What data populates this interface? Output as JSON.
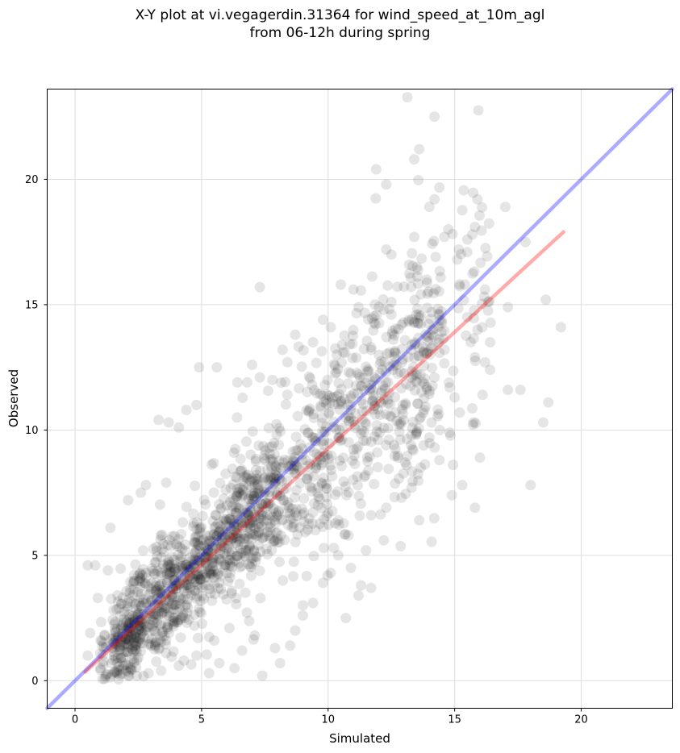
{
  "title_line1": "X-Y plot at vi.vegagerdin.31364 for wind_speed_at_10m_agl",
  "title_line2": "from 06-12h during spring",
  "chart_data": {
    "type": "scatter",
    "title": "X-Y plot at vi.vegagerdin.31364 for wind_speed_at_10m_agl\nfrom 06-12h during spring",
    "xlabel": "Simulated",
    "ylabel": "Observed",
    "xlim": [
      -1.1,
      23.6
    ],
    "ylim": [
      -1.1,
      23.6
    ],
    "xticks": [
      0,
      5,
      10,
      15,
      20
    ],
    "yticks": [
      0,
      5,
      10,
      15,
      20
    ],
    "grid": true,
    "point_color": "#000000",
    "point_alpha": 0.1,
    "reference_lines": [
      {
        "kind": "one-to-one",
        "color": "#0000ff",
        "x": [
          -1.1,
          23.6
        ],
        "y": [
          -1.1,
          23.6
        ]
      },
      {
        "kind": "regression",
        "color": "#ff0000",
        "x": [
          0.4,
          19.3
        ],
        "y": [
          0.35,
          17.9
        ]
      }
    ],
    "points": [
      [
        14.2,
        22.5
      ],
      [
        13.6,
        21.2
      ],
      [
        13.4,
        20.8
      ],
      [
        11.9,
        20.4
      ],
      [
        14.2,
        19.2
      ],
      [
        15.9,
        19.2
      ],
      [
        14.0,
        18.9
      ],
      [
        17.0,
        18.9
      ],
      [
        15.8,
        18.1
      ],
      [
        15.5,
        17.6
      ],
      [
        15.7,
        17.8
      ],
      [
        17.8,
        17.5
      ],
      [
        13.4,
        17.7
      ],
      [
        12.3,
        17.2
      ],
      [
        12.5,
        17.0
      ],
      [
        15.1,
        16.8
      ],
      [
        13.2,
        16.6
      ],
      [
        13.9,
        16.0
      ],
      [
        15.4,
        15.8
      ],
      [
        16.2,
        15.6
      ],
      [
        18.6,
        15.2
      ],
      [
        7.3,
        15.7
      ],
      [
        10.5,
        15.8
      ],
      [
        11.0,
        15.6
      ],
      [
        17.1,
        14.9
      ],
      [
        19.2,
        14.1
      ],
      [
        15.5,
        14.5
      ],
      [
        15.9,
        14.0
      ],
      [
        16.4,
        13.5
      ],
      [
        11.2,
        14.9
      ],
      [
        12.5,
        14.6
      ],
      [
        9.8,
        14.4
      ],
      [
        10.1,
        14.1
      ],
      [
        12.9,
        14.2
      ],
      [
        8.7,
        13.8
      ],
      [
        9.4,
        13.5
      ],
      [
        10.6,
        13.1
      ],
      [
        11.7,
        13.3
      ],
      [
        13.3,
        13.4
      ],
      [
        14.6,
        13.2
      ],
      [
        15.8,
        12.9
      ],
      [
        16.2,
        12.7
      ],
      [
        16.4,
        12.4
      ],
      [
        17.6,
        11.6
      ],
      [
        17.1,
        11.6
      ],
      [
        16.1,
        11.4
      ],
      [
        15.0,
        11.3
      ],
      [
        18.7,
        11.1
      ],
      [
        18.5,
        10.3
      ],
      [
        16.0,
        8.9
      ],
      [
        15.3,
        7.8
      ],
      [
        18.0,
        7.8
      ],
      [
        15.8,
        6.9
      ],
      [
        13.6,
        6.4
      ],
      [
        12.2,
        5.6
      ],
      [
        11.5,
        5.2
      ],
      [
        10.9,
        4.5
      ],
      [
        11.3,
        3.8
      ],
      [
        11.7,
        3.7
      ],
      [
        11.2,
        3.4
      ],
      [
        10.7,
        2.5
      ],
      [
        8.5,
        1.4
      ],
      [
        7.4,
        0.2
      ],
      [
        8.1,
        0.7
      ],
      [
        5.6,
        12.5
      ],
      [
        4.9,
        12.5
      ],
      [
        3.3,
        10.4
      ],
      [
        3.7,
        10.3
      ],
      [
        4.1,
        10.1
      ],
      [
        4.4,
        10.8
      ],
      [
        4.8,
        11.0
      ],
      [
        6.4,
        10.5
      ],
      [
        6.8,
        11.9
      ],
      [
        7.3,
        12.1
      ],
      [
        7.8,
        12.0
      ],
      [
        8.2,
        13.2
      ],
      [
        7.0,
        12.6
      ],
      [
        2.8,
        7.8
      ],
      [
        2.1,
        7.2
      ],
      [
        1.4,
        6.1
      ],
      [
        2.6,
        7.5
      ],
      [
        3.6,
        7.9
      ],
      [
        0.5,
        4.6
      ],
      [
        0.8,
        4.6
      ],
      [
        1.3,
        4.4
      ],
      [
        0.9,
        3.3
      ],
      [
        0.6,
        1.9
      ],
      [
        0.5,
        1.0
      ],
      [
        1.0,
        0.5
      ],
      [
        2.1,
        0.2
      ],
      [
        2.9,
        0.3
      ],
      [
        3.4,
        0.4
      ],
      [
        4.1,
        0.6
      ],
      [
        5.3,
        0.3
      ],
      [
        5.7,
        0.7
      ],
      [
        6.3,
        0.5
      ],
      [
        12.6,
        9.4
      ],
      [
        13.1,
        8.6
      ],
      [
        13.3,
        7.7
      ],
      [
        12.9,
        7.3
      ],
      [
        12.3,
        6.9
      ],
      [
        11.7,
        6.6
      ],
      [
        10.4,
        6.4
      ],
      [
        9.5,
        6.0
      ],
      [
        14.0,
        9.7
      ],
      [
        14.4,
        8.8
      ],
      [
        14.8,
        9.9
      ],
      [
        13.8,
        10.8
      ],
      [
        13.5,
        11.9
      ],
      [
        14.2,
        12.1
      ],
      [
        14.8,
        11.7
      ],
      [
        15.2,
        10.7
      ],
      [
        9.0,
        2.6
      ],
      [
        9.4,
        3.1
      ],
      [
        9.8,
        3.9
      ],
      [
        10.1,
        4.3
      ],
      [
        10.4,
        5.0
      ],
      [
        10.8,
        5.8
      ],
      [
        8.7,
        2.0
      ],
      [
        7.9,
        1.3
      ],
      [
        7.1,
        1.8
      ],
      [
        6.6,
        1.2
      ],
      [
        6.1,
        2.1
      ],
      [
        5.5,
        1.6
      ],
      [
        4.8,
        1.0
      ],
      [
        4.3,
        0.8
      ],
      [
        3.6,
        1.1
      ],
      [
        3.0,
        1.4
      ]
    ],
    "cloud_rng_seed": 31364,
    "cloud_groups": [
      {
        "n": 900,
        "x_min": 1.0,
        "x_max": 14.5,
        "slope": 0.93,
        "intercept": 0.1,
        "sd": 1.6
      },
      {
        "n": 550,
        "x_min": 1.5,
        "x_max": 8.0,
        "slope": 0.95,
        "intercept": 0.0,
        "sd": 1.2
      },
      {
        "n": 200,
        "x_min": 8.0,
        "x_max": 16.5,
        "slope": 0.92,
        "intercept": 0.2,
        "sd": 2.2
      }
    ]
  }
}
